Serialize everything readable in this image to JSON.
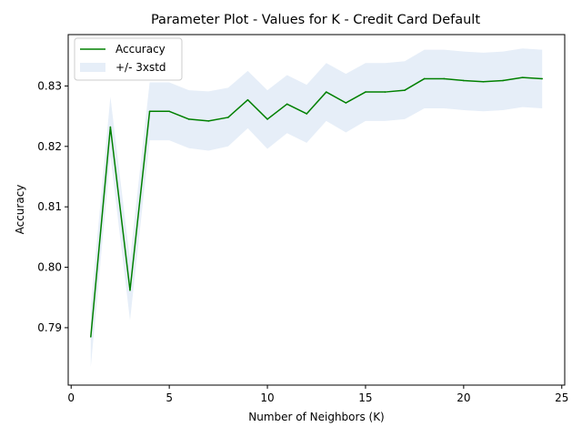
{
  "chart_data": {
    "type": "line",
    "title": "Parameter Plot - Values for K - Credit Card Default",
    "xlabel": "Number of Neighbors (K)",
    "ylabel": "Accuracy",
    "xlim": [
      -0.15,
      25.15
    ],
    "ylim": [
      0.7805,
      0.8385
    ],
    "xticks": [
      0,
      5,
      10,
      15,
      20,
      25
    ],
    "xtick_labels": [
      "0",
      "5",
      "10",
      "15",
      "20",
      "25"
    ],
    "yticks": [
      0.79,
      0.8,
      0.81,
      0.82,
      0.83
    ],
    "ytick_labels": [
      "0.79",
      "0.80",
      "0.81",
      "0.82",
      "0.83"
    ],
    "grid": false,
    "legend_position": "upper-left",
    "series": [
      {
        "name": "Accuracy",
        "kind": "line",
        "color": "#008000",
        "x": [
          1,
          2,
          3,
          4,
          5,
          6,
          7,
          8,
          9,
          10,
          11,
          12,
          13,
          14,
          15,
          16,
          17,
          18,
          19,
          20,
          21,
          22,
          23,
          24
        ],
        "y": [
          0.7885,
          0.8232,
          0.7962,
          0.8258,
          0.8258,
          0.8245,
          0.8242,
          0.8248,
          0.8277,
          0.8245,
          0.827,
          0.8254,
          0.829,
          0.8272,
          0.829,
          0.829,
          0.8293,
          0.8312,
          0.8312,
          0.8309,
          0.8307,
          0.8309,
          0.8314,
          0.8312
        ]
      },
      {
        "name": "+/- 3xstd",
        "kind": "band",
        "color": "#e6eef8",
        "x": [
          1,
          2,
          3,
          4,
          5,
          6,
          7,
          8,
          9,
          10,
          11,
          12,
          13,
          14,
          15,
          16,
          17,
          18,
          19,
          20,
          21,
          22,
          23,
          24
        ],
        "lower": [
          0.7835,
          0.8185,
          0.7912,
          0.821,
          0.821,
          0.8197,
          0.8193,
          0.82,
          0.823,
          0.8196,
          0.8222,
          0.8206,
          0.8242,
          0.8223,
          0.8242,
          0.8242,
          0.8245,
          0.8263,
          0.8263,
          0.826,
          0.8258,
          0.826,
          0.8265,
          0.8263
        ],
        "upper": [
          0.7935,
          0.8282,
          0.8012,
          0.8306,
          0.8306,
          0.8293,
          0.8291,
          0.8297,
          0.8325,
          0.8293,
          0.8318,
          0.8302,
          0.8338,
          0.832,
          0.8338,
          0.8338,
          0.8341,
          0.836,
          0.836,
          0.8357,
          0.8355,
          0.8357,
          0.8362,
          0.836
        ]
      }
    ]
  }
}
